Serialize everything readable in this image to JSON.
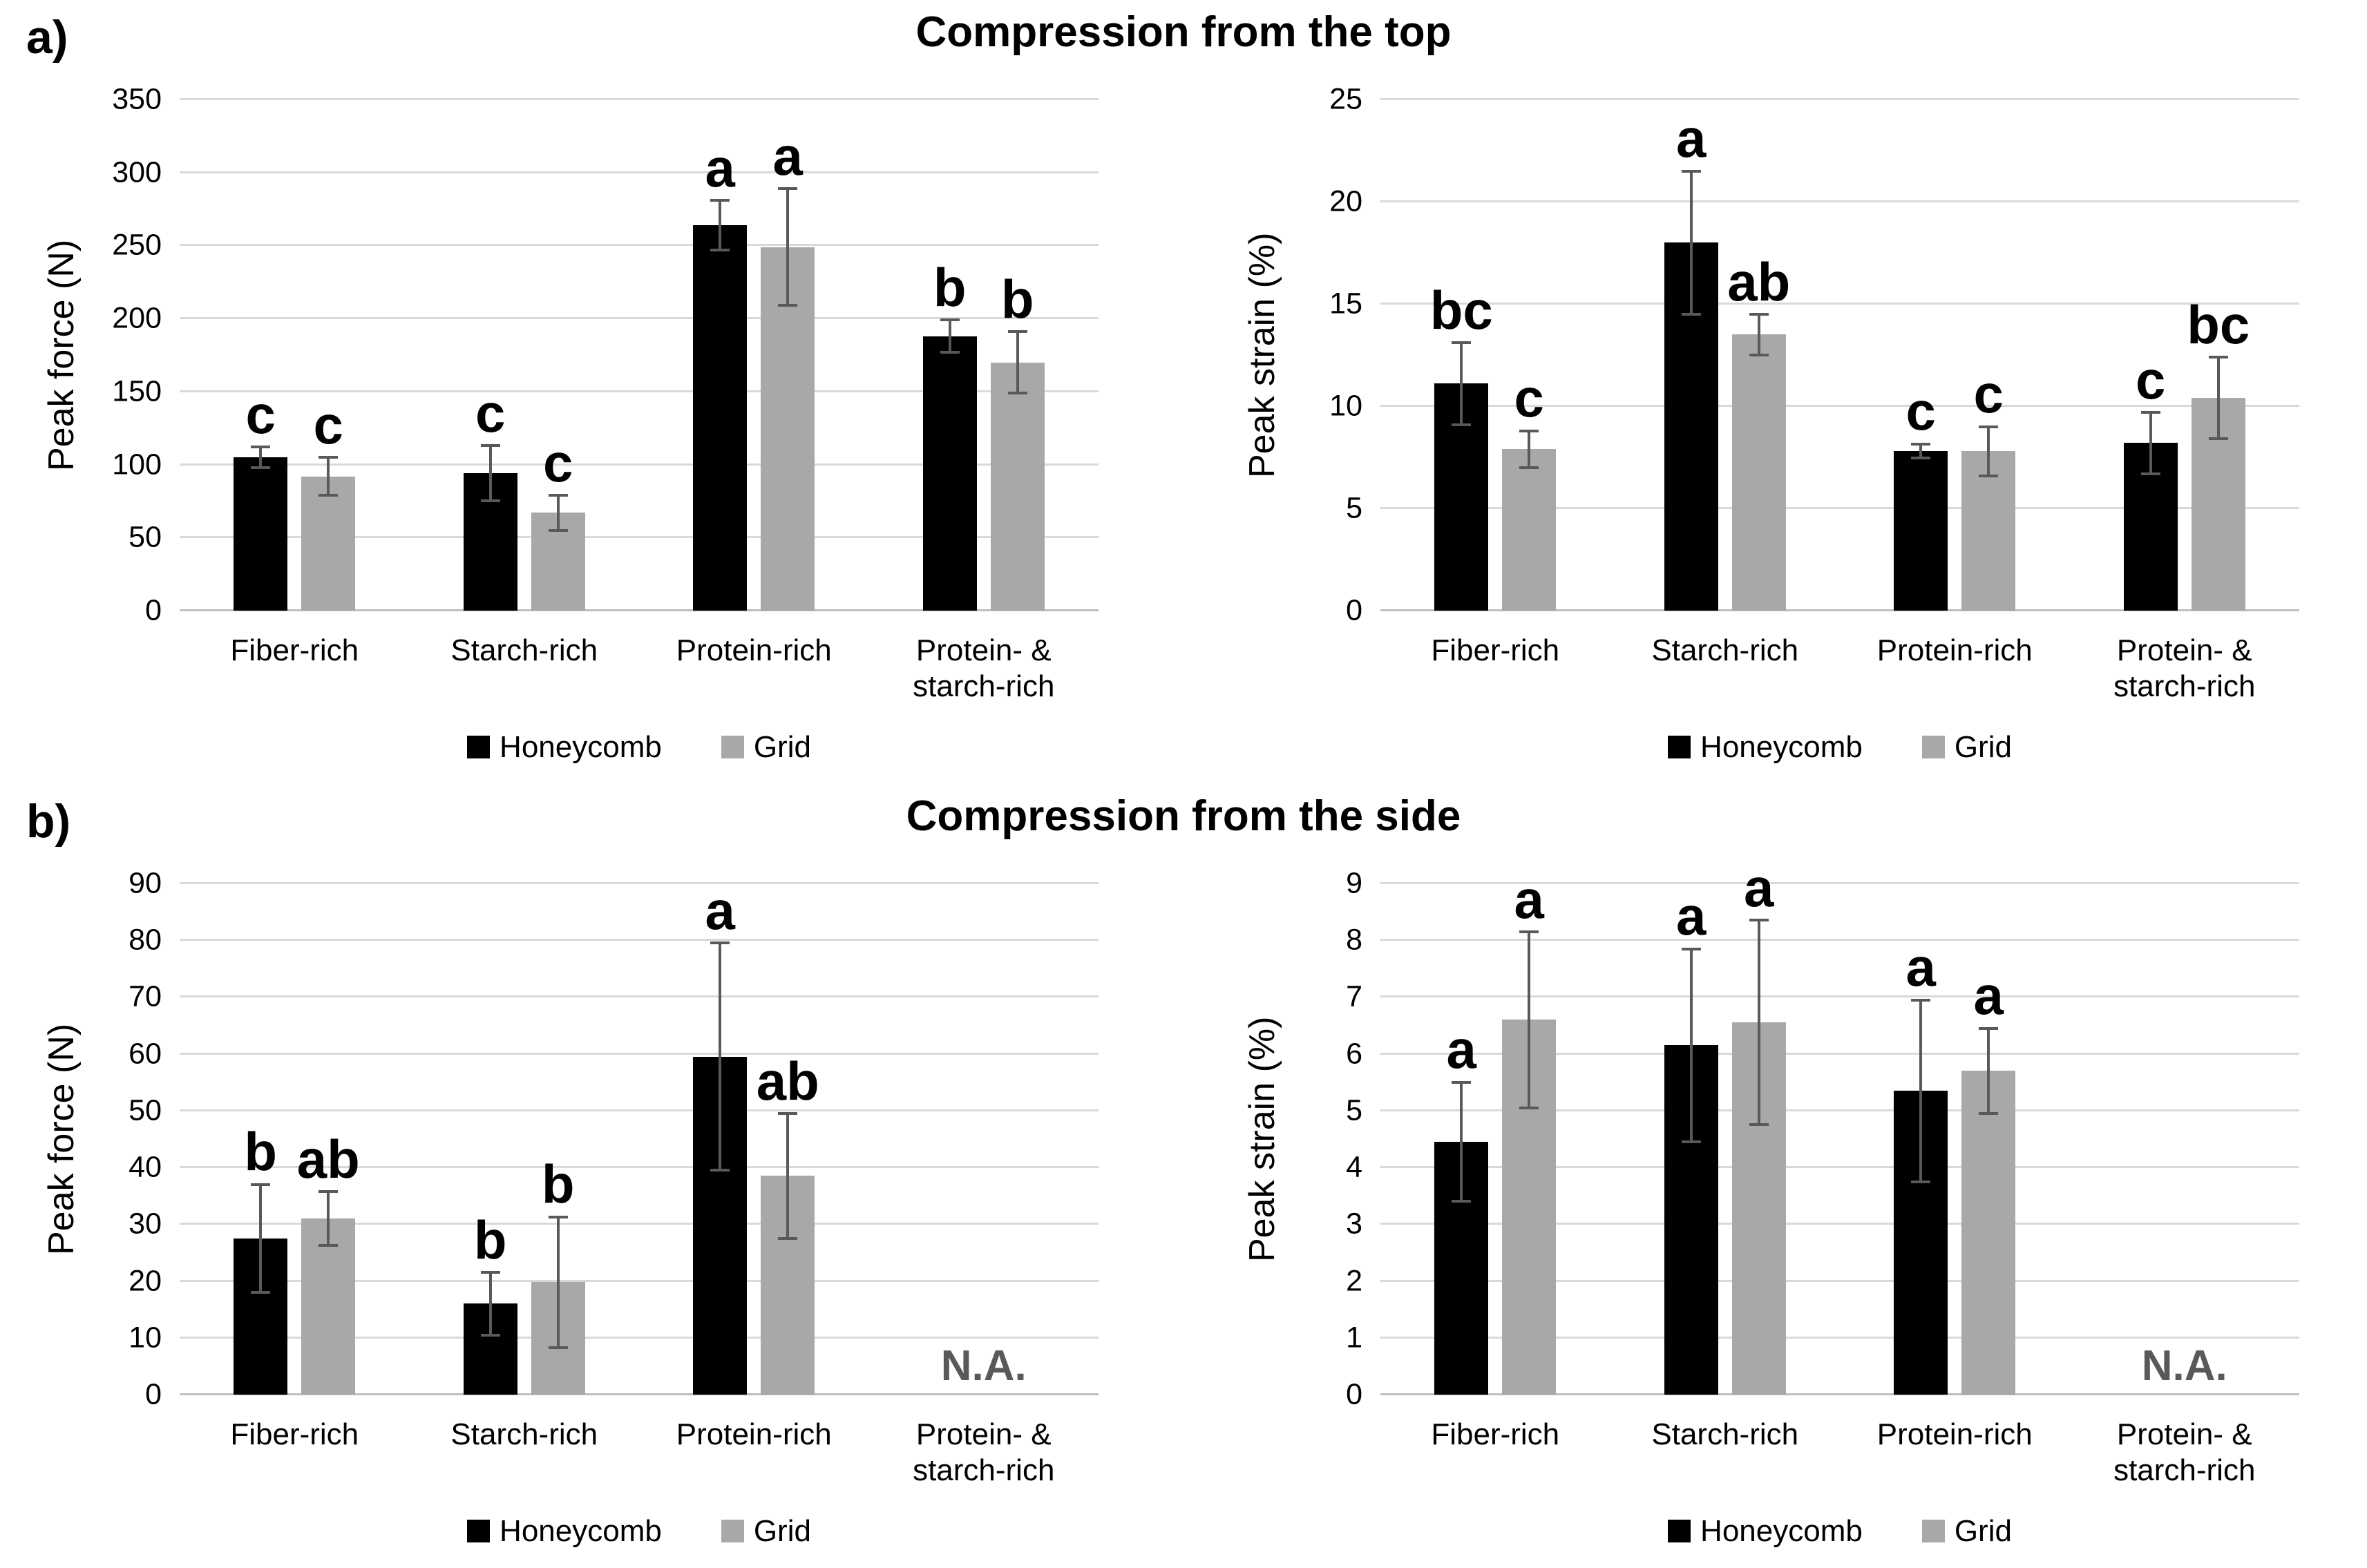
{
  "colors": {
    "background": "#ffffff",
    "honeycomb_series": "#000000",
    "grid_series": "#a8a8a8",
    "gridline": "#d9d9d9",
    "axis_line": "#bfbfbf",
    "error_bar": "#595959",
    "na_text": "#595959",
    "text": "#000000"
  },
  "sections": [
    {
      "label": "a)",
      "title": "Compression from the top",
      "chart_indexes": [
        0,
        1
      ]
    },
    {
      "label": "b)",
      "title": "Compression from the side",
      "chart_indexes": [
        2,
        3
      ]
    }
  ],
  "legend": {
    "entries": [
      "Honeycomb",
      "Grid"
    ]
  },
  "chart_data": [
    {
      "type": "bar",
      "panel": "a",
      "position": "left",
      "title": "Compression from the top",
      "xlabel": "",
      "ylabel": "Peak force (N)",
      "ylim": [
        0,
        350
      ],
      "ystep": 50,
      "grid": true,
      "legend_position": "bottom",
      "categories": [
        "Fiber-rich",
        "Starch-rich",
        "Protein-rich",
        "Protein- &\nstarch-rich"
      ],
      "series": [
        {
          "name": "Honeycomb",
          "color": "#000000",
          "values": [
            105,
            94,
            264,
            188
          ],
          "errors": [
            7,
            19,
            17,
            11
          ],
          "sig_letters": [
            "c",
            "c",
            "a",
            "b"
          ]
        },
        {
          "name": "Grid",
          "color": "#a8a8a8",
          "values": [
            92,
            67,
            249,
            170
          ],
          "errors": [
            13,
            12,
            40,
            21
          ],
          "sig_letters": [
            "c",
            "c",
            "a",
            "b"
          ]
        }
      ],
      "na": null
    },
    {
      "type": "bar",
      "panel": "a",
      "position": "right",
      "title": "Compression from the top",
      "xlabel": "",
      "ylabel": "Peak strain (%)",
      "ylim": [
        0,
        25
      ],
      "ystep": 5,
      "grid": true,
      "legend_position": "bottom",
      "categories": [
        "Fiber-rich",
        "Starch-rich",
        "Protein-rich",
        "Protein- &\nstarch-rich"
      ],
      "series": [
        {
          "name": "Honeycomb",
          "color": "#000000",
          "values": [
            11.1,
            18.0,
            7.8,
            8.2
          ],
          "errors": [
            2.0,
            3.5,
            0.35,
            1.5
          ],
          "sig_letters": [
            "bc",
            "a",
            "c",
            "c"
          ]
        },
        {
          "name": "Grid",
          "color": "#a8a8a8",
          "values": [
            7.9,
            13.5,
            7.8,
            10.4
          ],
          "errors": [
            0.9,
            1.0,
            1.2,
            2.0
          ],
          "sig_letters": [
            "c",
            "ab",
            "c",
            "bc"
          ]
        }
      ],
      "na": null
    },
    {
      "type": "bar",
      "panel": "b",
      "position": "left",
      "title": "Compression from the side",
      "xlabel": "",
      "ylabel": "Peak force (N)",
      "ylim": [
        0,
        90
      ],
      "ystep": 10,
      "grid": true,
      "legend_position": "bottom",
      "categories": [
        "Fiber-rich",
        "Starch-rich",
        "Protein-rich",
        "Protein- &\nstarch-rich"
      ],
      "series": [
        {
          "name": "Honeycomb",
          "color": "#000000",
          "values": [
            27.5,
            16.0,
            59.5,
            null
          ],
          "errors": [
            9.5,
            5.5,
            20.0,
            null
          ],
          "sig_letters": [
            "b",
            "b",
            "a",
            null
          ]
        },
        {
          "name": "Grid",
          "color": "#a8a8a8",
          "values": [
            31.0,
            19.8,
            38.5,
            null
          ],
          "errors": [
            4.7,
            11.5,
            11.0,
            null
          ],
          "sig_letters": [
            "ab",
            "b",
            "ab",
            null
          ]
        }
      ],
      "na": {
        "index": 3,
        "label": "N.A."
      }
    },
    {
      "type": "bar",
      "panel": "b",
      "position": "right",
      "title": "Compression from the side",
      "xlabel": "",
      "ylabel": "Peak strain (%)",
      "ylim": [
        0,
        9
      ],
      "ystep": 1,
      "grid": true,
      "legend_position": "bottom",
      "categories": [
        "Fiber-rich",
        "Starch-rich",
        "Protein-rich",
        "Protein- &\nstarch-rich"
      ],
      "series": [
        {
          "name": "Honeycomb",
          "color": "#000000",
          "values": [
            4.45,
            6.15,
            5.35,
            null
          ],
          "errors": [
            1.05,
            1.7,
            1.6,
            null
          ],
          "sig_letters": [
            "a",
            "a",
            "a",
            null
          ]
        },
        {
          "name": "Grid",
          "color": "#a8a8a8",
          "values": [
            6.6,
            6.55,
            5.7,
            null
          ],
          "errors": [
            1.55,
            1.8,
            0.75,
            null
          ],
          "sig_letters": [
            "a",
            "a",
            "a",
            null
          ]
        }
      ],
      "na": {
        "index": 3,
        "label": "N.A."
      }
    }
  ]
}
